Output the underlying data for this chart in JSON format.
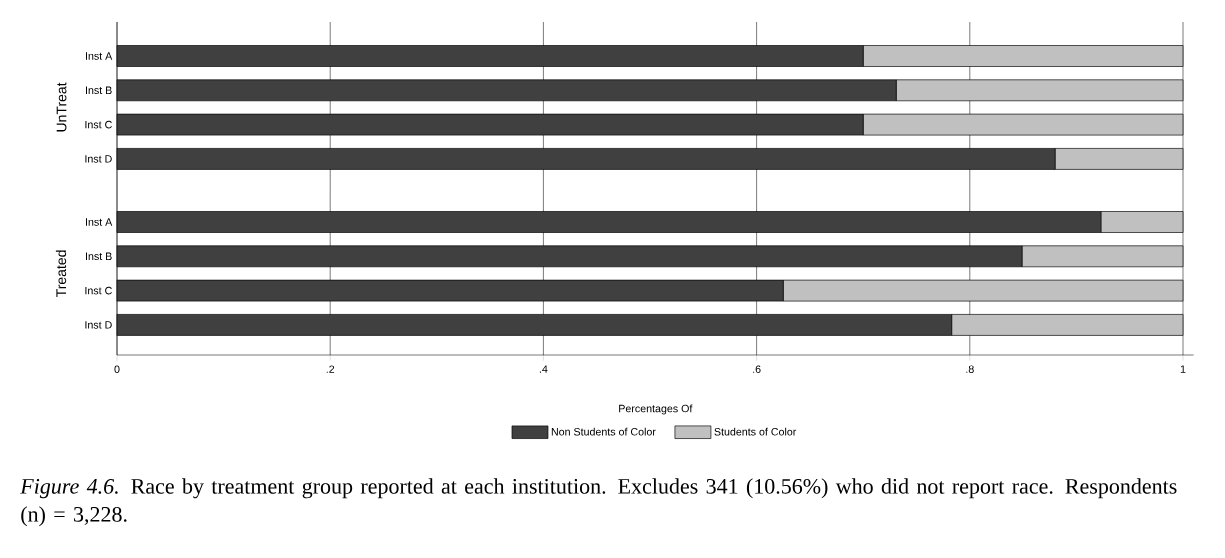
{
  "chart_data": [
    {
      "type": "bar",
      "orientation": "horizontal",
      "stacked": true,
      "ylabel": "UnTreat",
      "categories": [
        "Inst A",
        "Inst B",
        "Inst C",
        "Inst D"
      ],
      "series": [
        {
          "color": "#404040",
          "values": [
            0.7,
            0.731,
            0.7,
            0.88
          ]
        },
        {
          "color": "#c0c0c0",
          "values": [
            0.3,
            0.269,
            0.3,
            0.12
          ]
        }
      ],
      "xlim": [
        0,
        1
      ],
      "xticks": [
        0,
        0.2,
        0.4,
        0.6,
        0.8,
        1
      ],
      "grid": "x",
      "tick_labels": "y"
    },
    {
      "type": "bar",
      "orientation": "horizontal",
      "stacked": true,
      "ylabel": "Treated",
      "categories": [
        "Inst A",
        "Inst B",
        "Inst C",
        "Inst D"
      ],
      "series": [
        {
          "name": "Non Students of Color",
          "color": "#404040",
          "values": [
            0.923,
            0.849,
            0.625,
            0.783
          ]
        },
        {
          "name": "Students of Color",
          "color": "#c0c0c0",
          "values": [
            0.077,
            0.151,
            0.375,
            0.217
          ]
        }
      ],
      "xlim": [
        0,
        1.01
      ],
      "xticks": [
        0,
        {
          "value": 0.2,
          "label": ".2"
        },
        {
          "value": 0.4,
          "label": ".4"
        },
        {
          "value": 0.6,
          "label": ".6"
        },
        {
          "value": 0.8,
          "label": ".8"
        },
        1
      ],
      "grid": "x",
      "legend": "bottom",
      "legend_title": "Percentages Of",
      "annotations": [
        "*Figure 4.6.* Race by treatment group reported at each institution. Excludes 341 (10.56%) who did not report race. Respondents (n) = 3,228."
      ]
    }
  ]
}
